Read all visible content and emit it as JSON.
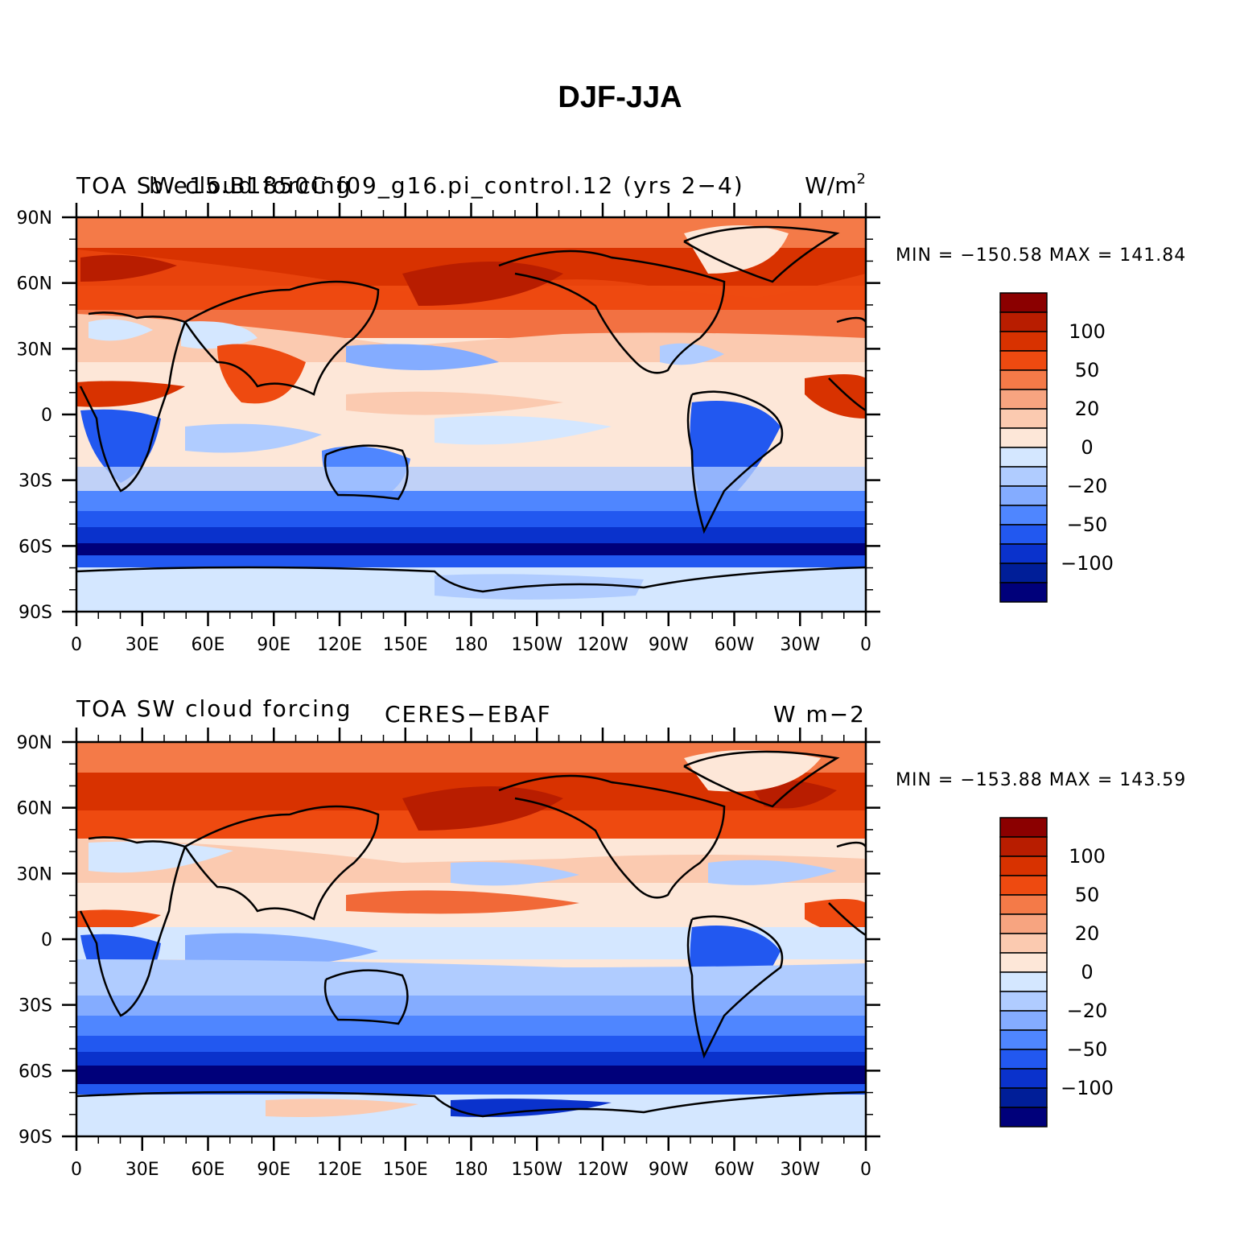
{
  "figure": {
    "title": "DJF-JJA"
  },
  "colorbar": {
    "labels": [
      "100",
      "50",
      "20",
      "0",
      "−20",
      "−50",
      "−100"
    ],
    "colors": [
      "#8b0000",
      "#b81d00",
      "#d83200",
      "#ee4a10",
      "#f47a48",
      "#f7a480",
      "#fbcab0",
      "#fde7d8",
      "#d4e7ff",
      "#b0ccff",
      "#84acff",
      "#4f86ff",
      "#2258f0",
      "#0a32cc",
      "#001e98",
      "#00007a"
    ]
  },
  "map_axes": {
    "lat_labels": [
      "90N",
      "60N",
      "30N",
      "0",
      "30S",
      "60S",
      "90S"
    ],
    "lon_labels": [
      "0",
      "30E",
      "60E",
      "90E",
      "120E",
      "150E",
      "180",
      "150W",
      "120W",
      "90W",
      "60W",
      "30W",
      "0"
    ]
  },
  "panels": [
    {
      "left_title": "TOA SW cloud forcing",
      "center_title": "b.e15.B1850C.f09_g16.pi_control.12 (yrs 2−4)",
      "units_base": "W/m",
      "units_sup": "2",
      "stats": "MIN = −150.58 MAX = 141.84"
    },
    {
      "left_title": "TOA SW cloud forcing",
      "center_title": "CERES−EBAF",
      "units_base": "W m−2",
      "units_sup": "",
      "stats": "MIN = −153.88 MAX = 143.59"
    }
  ]
}
